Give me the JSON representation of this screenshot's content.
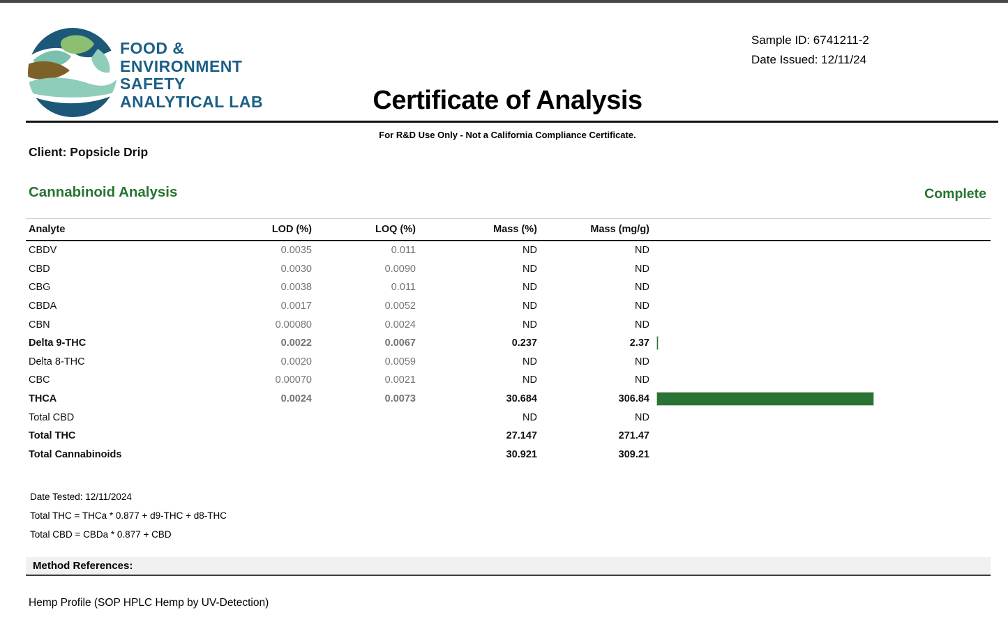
{
  "header": {
    "title": "Certificate of Analysis",
    "subtitle": "For R&D Use Only - Not a California Compliance Certificate.",
    "sample_id_line": "Sample ID: 6741211-2",
    "date_issued_line": "Date Issued: 12/11/24"
  },
  "logo": {
    "lines": [
      "FOOD &",
      "ENVIRONMENT",
      "SAFETY",
      "ANALYTICAL LAB"
    ],
    "colors": {
      "blue": "#1c5f85",
      "dark_blue": "#1d5878",
      "teal": "#7ac0ac",
      "seafoam": "#8fcdbb",
      "green": "#8cbf72",
      "brown": "#7d6128"
    }
  },
  "client_line": "Client: Popsicle Drip",
  "section": {
    "title": "Cannabinoid Analysis",
    "status": "Complete"
  },
  "table": {
    "headers": [
      "Analyte",
      "LOD (%)",
      "LOQ (%)",
      "Mass (%)",
      "Mass (mg/g)"
    ],
    "bar_max_value": 306.84,
    "rows": [
      {
        "analyte": "CBDV",
        "lod": "0.0035",
        "loq": "0.011",
        "mass_pct": "ND",
        "mass_mgg": "ND",
        "bold": false,
        "bar": 0
      },
      {
        "analyte": "CBD",
        "lod": "0.0030",
        "loq": "0.0090",
        "mass_pct": "ND",
        "mass_mgg": "ND",
        "bold": false,
        "bar": 0
      },
      {
        "analyte": "CBG",
        "lod": "0.0038",
        "loq": "0.011",
        "mass_pct": "ND",
        "mass_mgg": "ND",
        "bold": false,
        "bar": 0
      },
      {
        "analyte": "CBDA",
        "lod": "0.0017",
        "loq": "0.0052",
        "mass_pct": "ND",
        "mass_mgg": "ND",
        "bold": false,
        "bar": 0
      },
      {
        "analyte": "CBN",
        "lod": "0.00080",
        "loq": "0.0024",
        "mass_pct": "ND",
        "mass_mgg": "ND",
        "bold": false,
        "bar": 0
      },
      {
        "analyte": "Delta 9-THC",
        "lod": "0.0022",
        "loq": "0.0067",
        "mass_pct": "0.237",
        "mass_mgg": "2.37",
        "bold": true,
        "bar": 2.37
      },
      {
        "analyte": "Delta 8-THC",
        "lod": "0.0020",
        "loq": "0.0059",
        "mass_pct": "ND",
        "mass_mgg": "ND",
        "bold": false,
        "bar": 0
      },
      {
        "analyte": "CBC",
        "lod": "0.00070",
        "loq": "0.0021",
        "mass_pct": "ND",
        "mass_mgg": "ND",
        "bold": false,
        "bar": 0
      },
      {
        "analyte": "THCA",
        "lod": "0.0024",
        "loq": "0.0073",
        "mass_pct": "30.684",
        "mass_mgg": "306.84",
        "bold": true,
        "bar": 306.84
      },
      {
        "analyte": "Total CBD",
        "lod": "",
        "loq": "",
        "mass_pct": "ND",
        "mass_mgg": "ND",
        "bold": false,
        "bar": 0
      },
      {
        "analyte": "Total THC",
        "lod": "",
        "loq": "",
        "mass_pct": "27.147",
        "mass_mgg": "271.47",
        "bold": true,
        "bar": 0
      },
      {
        "analyte": "Total Cannabinoids",
        "lod": "",
        "loq": "",
        "mass_pct": "30.921",
        "mass_mgg": "309.21",
        "bold": true,
        "bar": 0
      }
    ]
  },
  "notes": [
    "Date Tested: 12/11/2024",
    "Total THC = THCa * 0.877 + d9-THC + d8-THC",
    "Total CBD = CBDa * 0.877 + CBD"
  ],
  "method_references_label": "Method References:",
  "method_reference": "Hemp Profile (SOP HPLC Hemp by UV-Detection)",
  "colors": {
    "accent_green": "#27742f",
    "bar_green": "#2a7334"
  }
}
